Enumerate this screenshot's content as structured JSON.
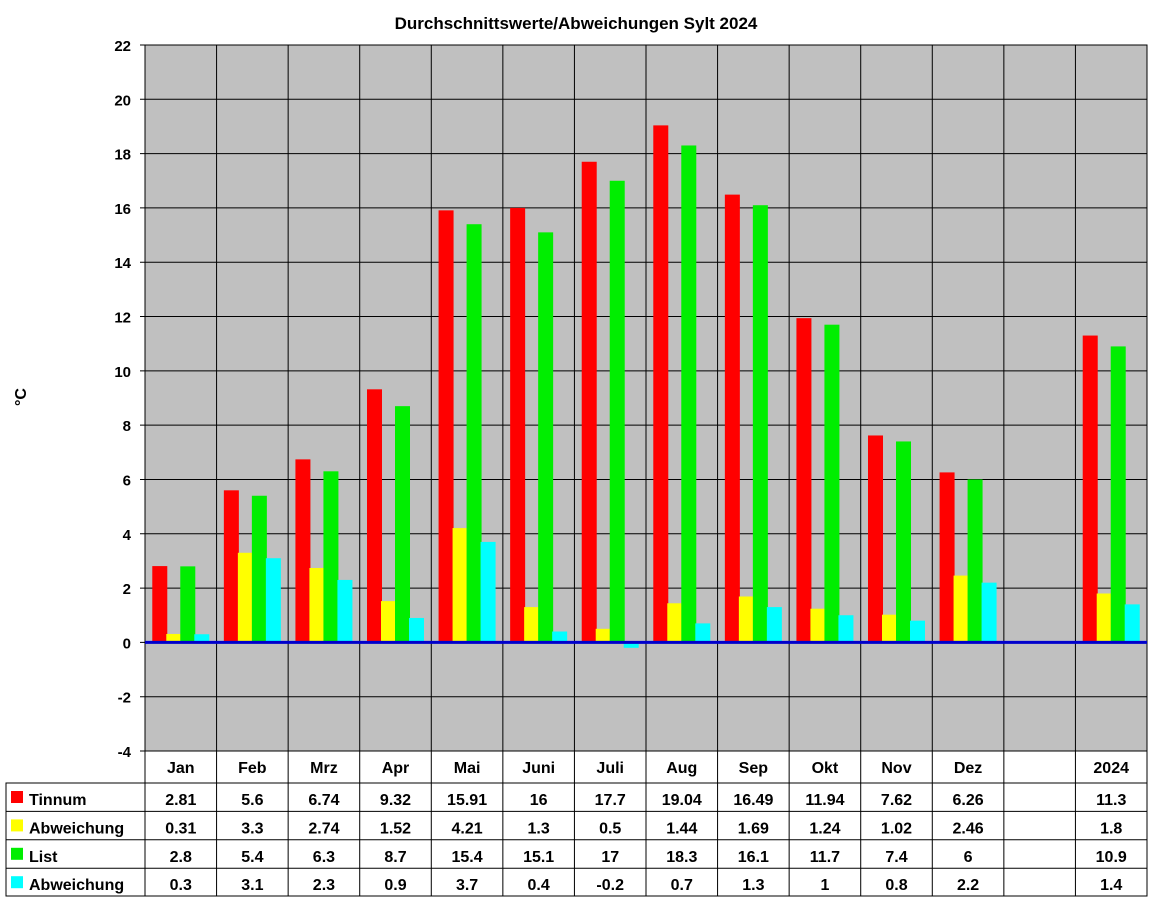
{
  "chart_data": {
    "type": "bar",
    "title": "Durchschnittswerte/Abweichungen Sylt 2024",
    "ylabel": "°C",
    "xlabel": "",
    "ylim": [
      -4,
      22
    ],
    "yticks": [
      -4,
      -2,
      0,
      2,
      4,
      6,
      8,
      10,
      12,
      14,
      16,
      18,
      20,
      22
    ],
    "grid": true,
    "legend": "data-table-left",
    "colors": {
      "plot_background": "#c0c0c0",
      "zero_line": "#0000cc",
      "grid": "#000000"
    },
    "categories": [
      "Jan",
      "Feb",
      "Mrz",
      "Apr",
      "Mai",
      "Juni",
      "Juli",
      "Aug",
      "Sep",
      "Okt",
      "Nov",
      "Dez",
      "",
      "2024"
    ],
    "series": [
      {
        "name": "Tinnum",
        "color": "#ff0000",
        "values": [
          2.81,
          5.6,
          6.74,
          9.32,
          15.91,
          16,
          17.7,
          19.04,
          16.49,
          11.94,
          7.62,
          6.26,
          null,
          11.3
        ]
      },
      {
        "name": "Abweichung",
        "color": "#ffff00",
        "values": [
          0.31,
          3.3,
          2.74,
          1.52,
          4.21,
          1.3,
          0.5,
          1.44,
          1.69,
          1.24,
          1.02,
          2.46,
          null,
          1.8
        ]
      },
      {
        "name": "List",
        "color": "#00ee00",
        "values": [
          2.8,
          5.4,
          6.3,
          8.7,
          15.4,
          15.1,
          17,
          18.3,
          16.1,
          11.7,
          7.4,
          6,
          null,
          10.9
        ]
      },
      {
        "name": "Abweichung",
        "color": "#00ffff",
        "values": [
          0.3,
          3.1,
          2.3,
          0.9,
          3.7,
          0.4,
          -0.2,
          0.7,
          1.3,
          1,
          0.8,
          2.2,
          null,
          1.4
        ]
      }
    ]
  }
}
